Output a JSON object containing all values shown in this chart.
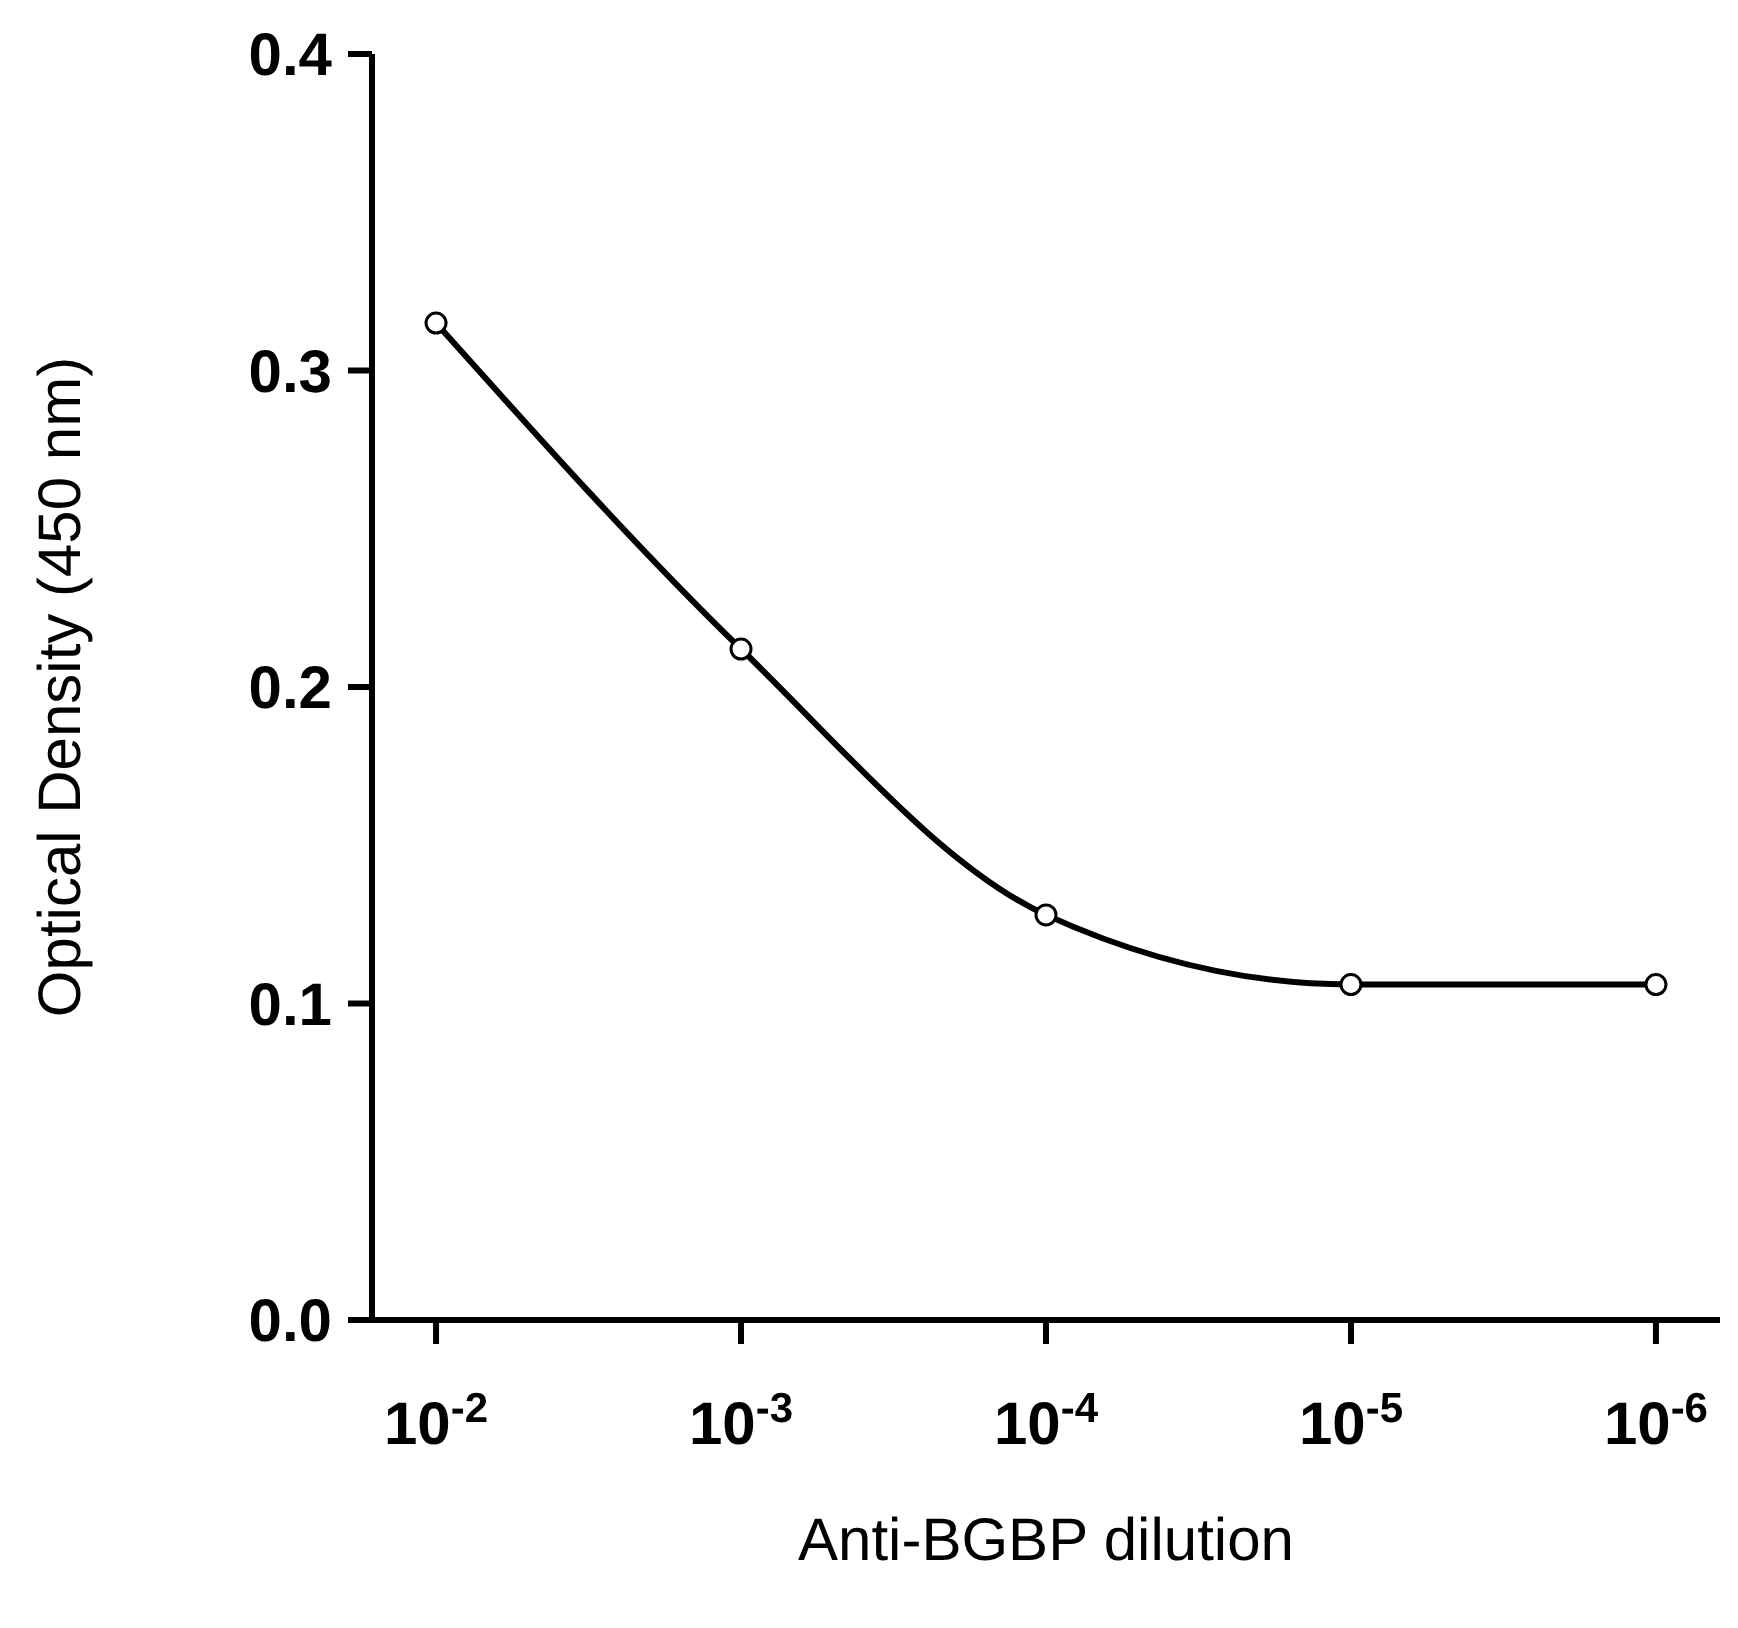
{
  "chart_data": {
    "type": "line",
    "xlabel": "Anti-BGBP dilution",
    "ylabel": "Optical Density (450 nm)",
    "categories": [
      "10$^{-2}$",
      "10$^{-3}$",
      "10$^{-4}$",
      "10$^{-5}$",
      "10$^{-6}$"
    ],
    "series": [
      {
        "color": "#000000",
        "values": [
          0.315,
          0.212,
          0.128,
          0.106,
          0.106
        ]
      }
    ],
    "ylim": [
      0,
      0.4
    ],
    "yticks": [
      {
        "value": 0,
        "label": "0.0"
      },
      0.1,
      0.2,
      0.3,
      0.4
    ],
    "marker": "circle",
    "line_style": "solid",
    "grid": false
  }
}
